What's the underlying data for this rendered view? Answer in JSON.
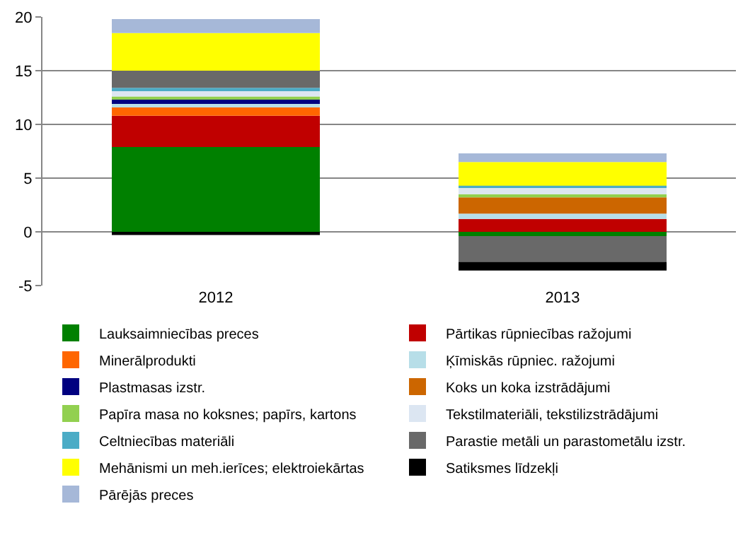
{
  "chart_data": {
    "type": "bar",
    "stacked": true,
    "categories": [
      "2012",
      "2013"
    ],
    "ylim": [
      -5,
      20
    ],
    "yticks": [
      -5,
      0,
      5,
      10,
      15,
      20
    ],
    "grid": "y",
    "legend": "bottom",
    "series": [
      {
        "name": "Lauksaimniecības preces",
        "color": "#008000",
        "values": [
          7.9,
          -0.4
        ]
      },
      {
        "name": "Pārtikas rūpniecības ražojumi",
        "color": "#c00000",
        "values": [
          2.9,
          1.2
        ]
      },
      {
        "name": "Minerālprodukti",
        "color": "#ff6600",
        "values": [
          0.9,
          0
        ]
      },
      {
        "name": "Ķīmiskās rūpniec. ražojumi",
        "color": "#b7dee8",
        "values": [
          0.2,
          0.5
        ]
      },
      {
        "name": "Plastmasas izstr.",
        "color": "#000080",
        "values": [
          0.4,
          0
        ]
      },
      {
        "name": "Koks un koka izstrādājumi",
        "color": "#cc6600",
        "values": [
          null,
          1.5
        ]
      },
      {
        "name": "Papīra masa no koksnes; papīrs, kartons",
        "color": "#92d050",
        "values": [
          0.3,
          0.3
        ]
      },
      {
        "name": "Tekstilmateriāli, tekstilizstrādājumi",
        "color": "#dce6f2",
        "values": [
          0.5,
          0.6
        ]
      },
      {
        "name": "Celtniecības materiāli",
        "color": "#4bacc6",
        "values": [
          0.3,
          0.2
        ]
      },
      {
        "name": "Parastie metāli un parastometālu izstr.",
        "color": "#696969",
        "values": [
          1.6,
          -2.4
        ]
      },
      {
        "name": "Mehānismi un meh.ierīces; elektroiekārtas",
        "color": "#ffff00",
        "values": [
          3.5,
          2.2
        ]
      },
      {
        "name": "Satiksmes līdzekļi",
        "color": "#000000",
        "values": [
          -0.3,
          -0.8
        ]
      },
      {
        "name": "Pārējās preces",
        "color": "#a6b8d8",
        "values": [
          1.3,
          0.8
        ]
      }
    ]
  }
}
